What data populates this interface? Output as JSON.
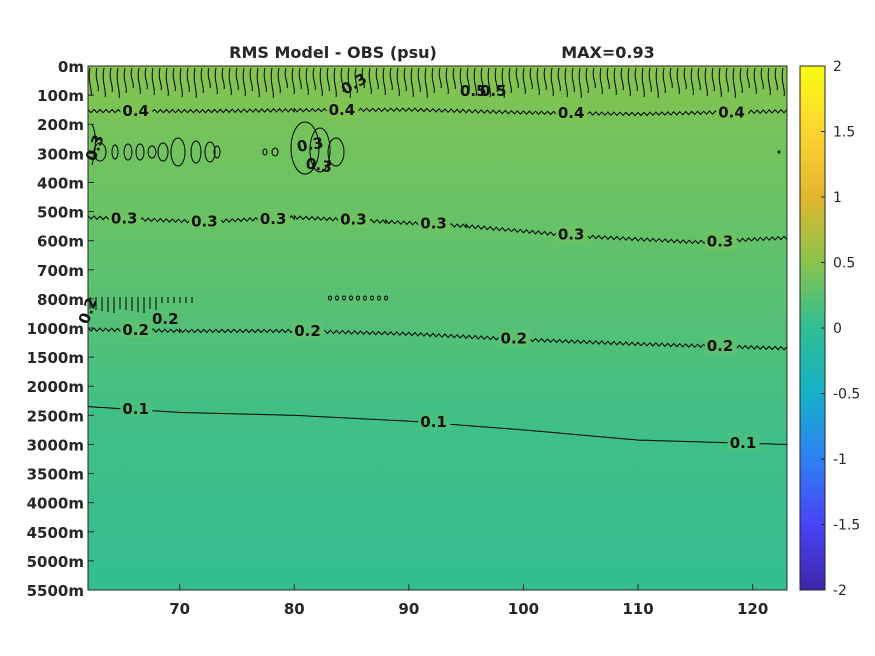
{
  "chart_data": {
    "type": "heatmap",
    "title": "RMS Model - OBS (psu)",
    "max_label": "MAX=0.93",
    "x_ticks": [
      70,
      80,
      90,
      100,
      110,
      120
    ],
    "xlim": [
      62,
      123
    ],
    "y_tick_labels": [
      "0m",
      "100m",
      "200m",
      "300m",
      "400m",
      "500m",
      "600m",
      "700m",
      "800m",
      "1000m",
      "1500m",
      "2000m",
      "2500m",
      "3000m",
      "3500m",
      "4000m",
      "4500m",
      "5000m",
      "5500m"
    ],
    "colorbar": {
      "range": [
        -2,
        2
      ],
      "ticks": [
        2,
        1.5,
        1,
        0.5,
        0,
        -0.5,
        -1,
        -1.5,
        -2
      ],
      "colormap": [
        "#3e26a8",
        "#4743f8",
        "#2e80f3",
        "#15b1c8",
        "#2fbe94",
        "#88c44c",
        "#e3b62f",
        "#fbd630",
        "#f9fb14"
      ]
    },
    "value_profile": [
      {
        "level": 0,
        "value": 0.5
      },
      {
        "level": 1,
        "value": 0.45
      },
      {
        "level": 2,
        "value": 0.4
      },
      {
        "level": 5,
        "value": 0.32
      },
      {
        "level": 9,
        "value": 0.2
      },
      {
        "level": 12,
        "value": 0.1
      },
      {
        "level": 18,
        "value": 0.02
      }
    ],
    "contours": [
      {
        "value": 0.4,
        "labels": [
          "0.4",
          "0.4",
          "0.4",
          "0.4"
        ],
        "points": [
          [
            62,
            1.55
          ],
          [
            72,
            1.55
          ],
          [
            80,
            1.52
          ],
          [
            90,
            1.5
          ],
          [
            100,
            1.6
          ],
          [
            110,
            1.65
          ],
          [
            123,
            1.55
          ]
        ],
        "label_x": [
          65,
          83,
          103,
          117
        ]
      },
      {
        "value": 0.3,
        "labels": [
          "0.3",
          "0.3",
          "0.3",
          "0.3",
          "0.3",
          "0.3",
          "0.3"
        ],
        "points": [
          [
            62,
            5.2
          ],
          [
            72,
            5.35
          ],
          [
            80,
            5.2
          ],
          [
            88,
            5.35
          ],
          [
            95,
            5.5
          ],
          [
            105,
            5.85
          ],
          [
            115,
            6.05
          ],
          [
            123,
            5.9
          ]
        ],
        "label_x": [
          64,
          71,
          77,
          84,
          91,
          103,
          116
        ]
      },
      {
        "value": 0.2,
        "labels": [
          "0.2",
          "0.2",
          "0.2",
          "0.2"
        ],
        "points": [
          [
            62,
            9.05
          ],
          [
            70,
            9.1
          ],
          [
            80,
            9.1
          ],
          [
            90,
            9.2
          ],
          [
            100,
            9.4
          ],
          [
            110,
            9.55
          ],
          [
            123,
            9.7
          ]
        ],
        "label_x": [
          65,
          80,
          98,
          116
        ]
      },
      {
        "value": 0.1,
        "labels": [
          "0.1",
          "0.1",
          "0.1"
        ],
        "points": [
          [
            62,
            11.7
          ],
          [
            70,
            11.9
          ],
          [
            80,
            12.0
          ],
          [
            90,
            12.2
          ],
          [
            100,
            12.5
          ],
          [
            110,
            12.85
          ],
          [
            123,
            13.0
          ]
        ],
        "label_x": [
          65,
          91,
          118
        ]
      }
    ],
    "small_labels": [
      "0.3",
      "0.2",
      "0.2",
      "0.3",
      "0.3",
      "0.5",
      "0.5",
      "0.3"
    ]
  }
}
